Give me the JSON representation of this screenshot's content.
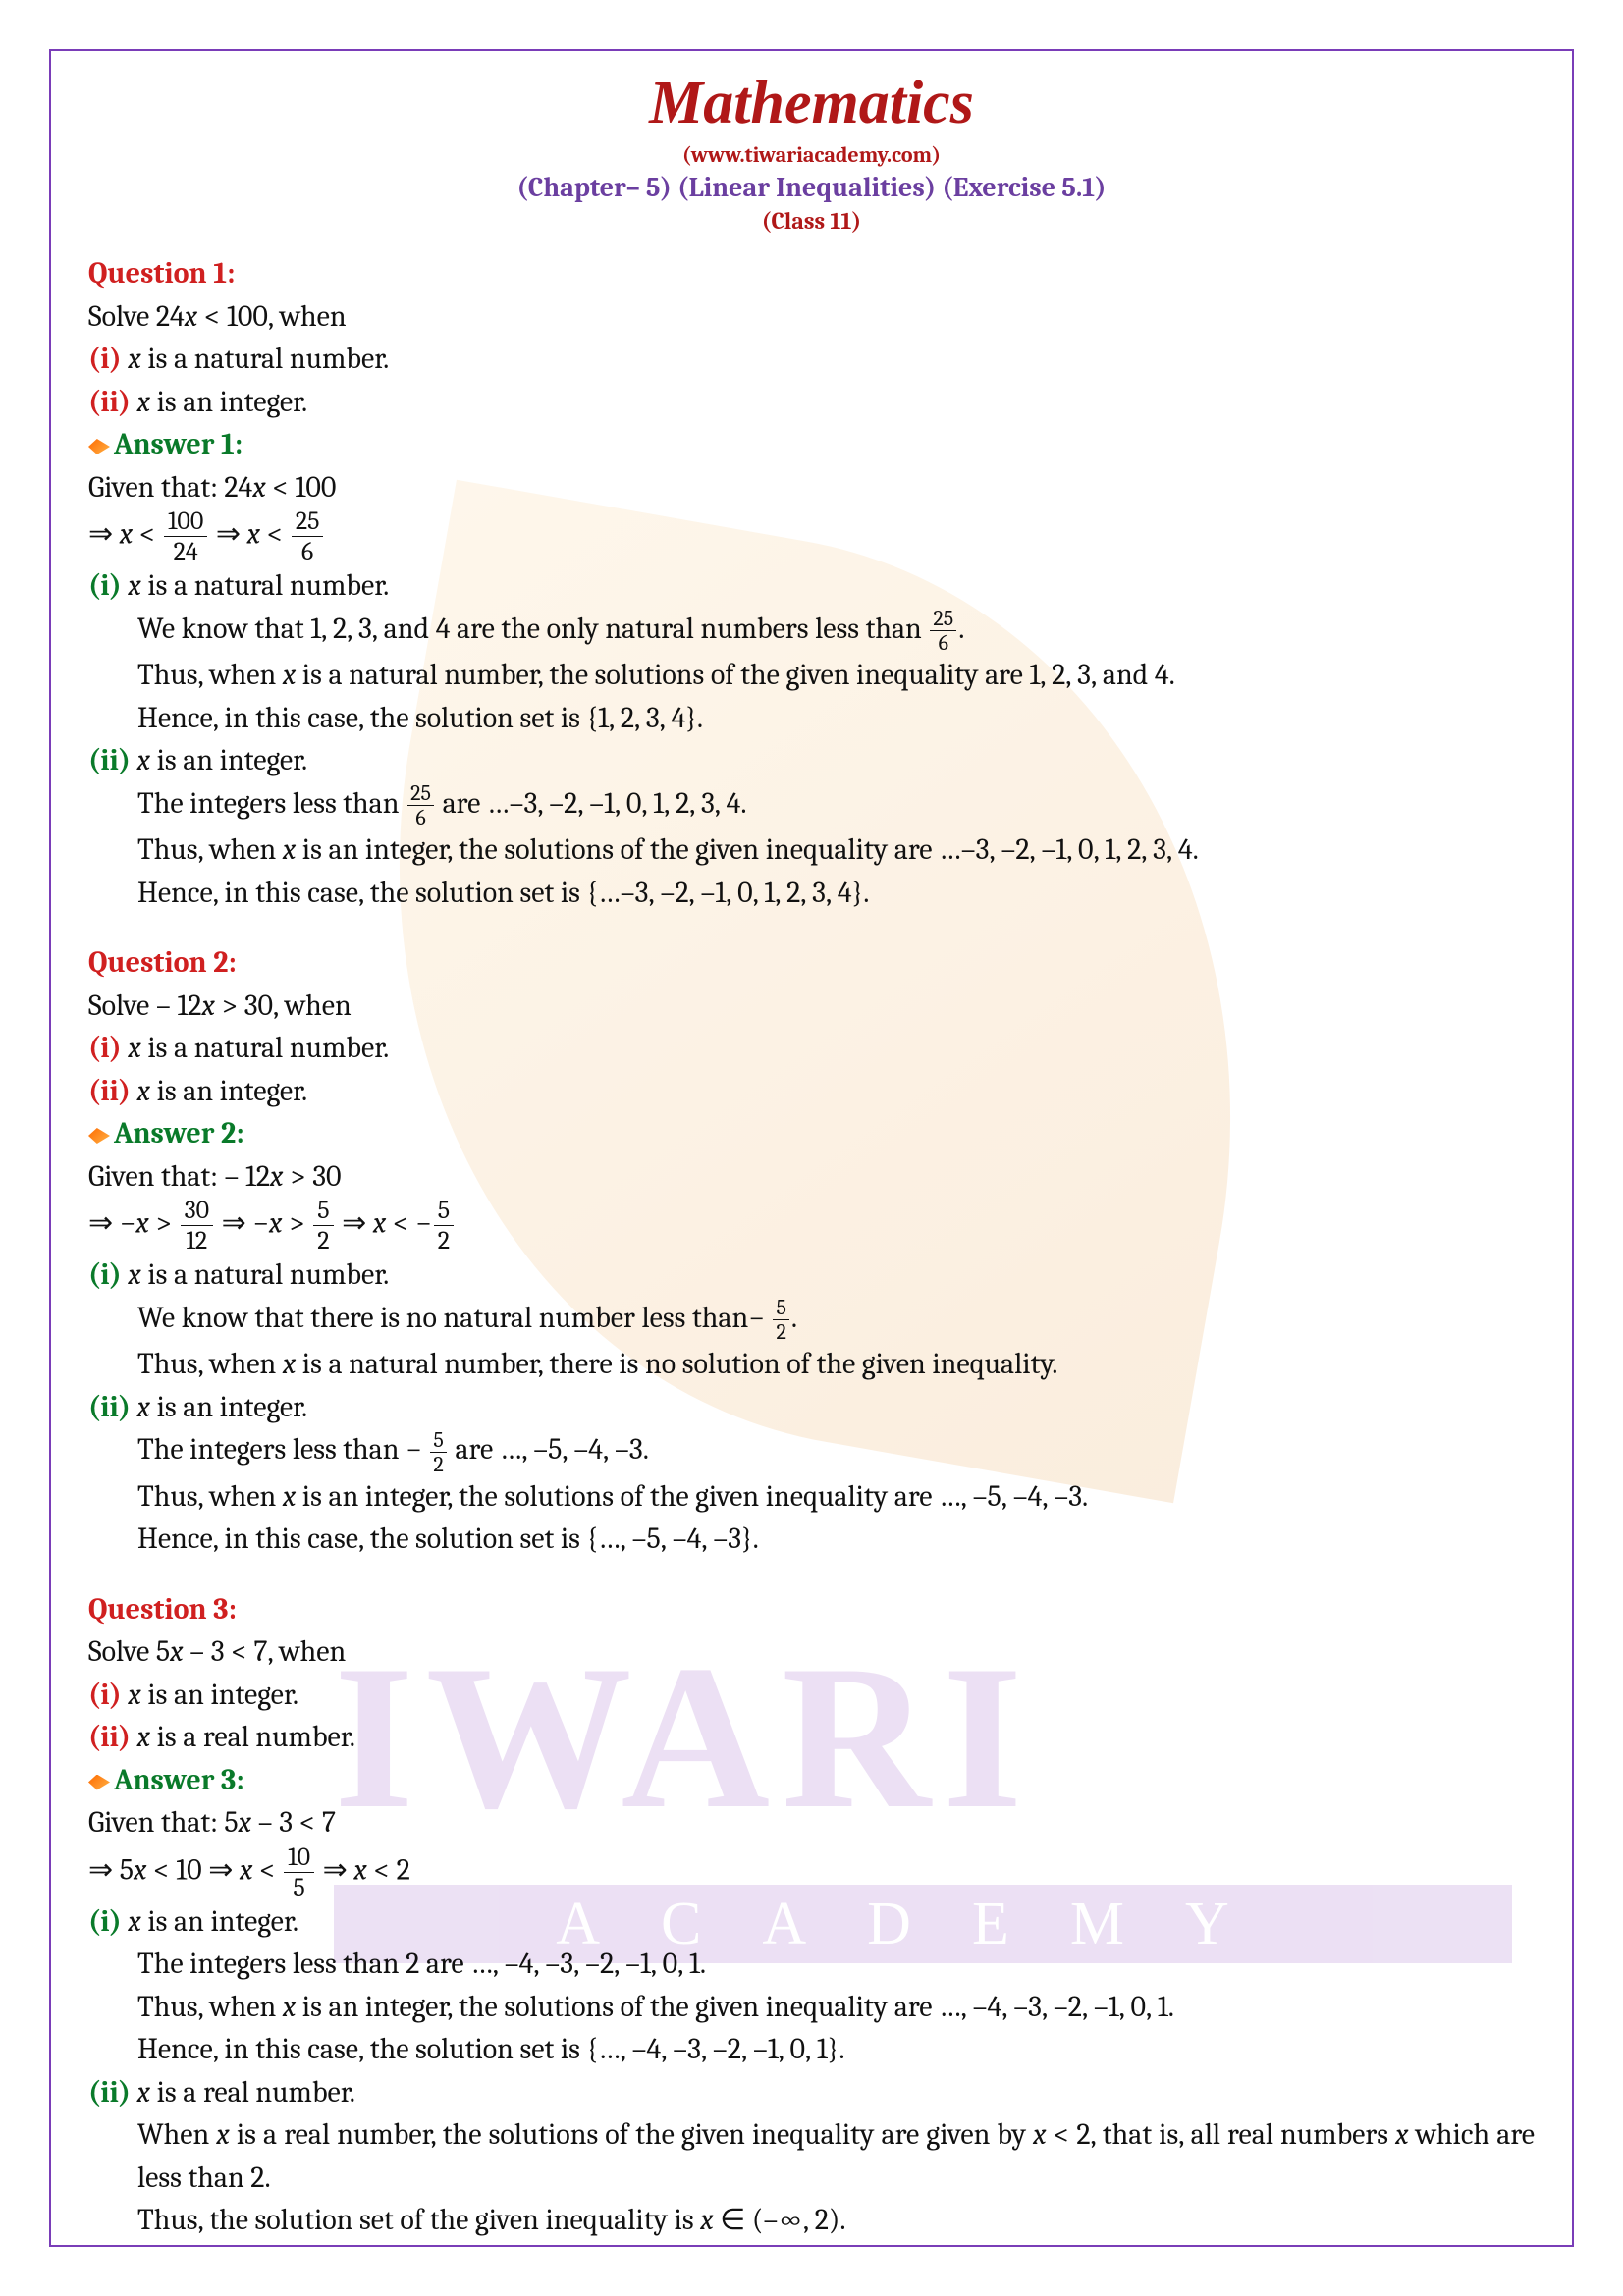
{
  "header": {
    "title": "Mathematics",
    "site": "(www.tiwariacademy.com)",
    "chapter": "(Chapter– 5) (Linear Inequalities) (Exercise 5.1)",
    "class": "(Class 11)"
  },
  "watermark": {
    "big": "IWARI",
    "bar": "ACADEMY"
  },
  "q1": {
    "label": "Question 1:",
    "prompt": "Solve 24",
    "prompt2": " < 100, when",
    "part_i_label": "(i)",
    "part_i_text": " is a natural number.",
    "part_ii_label": "(ii)",
    "part_ii_text": " is an integer.",
    "ans_label": "Answer 1:",
    "given": "Given that: 24",
    "given2": "  <  100",
    "step1a": "⇒ ",
    "lt": " < ",
    "f1n": "100",
    "f1d": "24",
    "imp": "    ⇒ ",
    "f2n": "25",
    "f2d": "6",
    "i_label": "(i)",
    "i_head": " is a natural number.",
    "i_l1a": "We know that 1, 2, 3, and 4 are the only natural numbers less than ",
    "i_l1b": ".",
    "i_l2": "Thus, when ",
    "i_l2b": " is a natural number, the solutions of the given inequality are 1, 2, 3, and 4.",
    "i_l3": "Hence, in this case, the solution set is {1, 2, 3, 4}.",
    "ii_label": "(ii)",
    "ii_head": " is an integer.",
    "ii_l1a": "The integers less than ",
    "ii_l1b": " are …–3, –2, –1, 0, 1, 2, 3, 4.",
    "ii_l2": "Thus, when ",
    "ii_l2b": " is an integer, the solutions of the given inequality are …–3, –2, –1, 0, 1, 2, 3, 4.",
    "ii_l3": "Hence, in this case, the solution set is {…–3, –2, –1, 0, 1, 2, 3, 4}."
  },
  "q2": {
    "label": "Question 2:",
    "prompt": "Solve – 12",
    "prompt2": " > 30, when",
    "part_i_label": "(i)",
    "part_i_text": " is a natural number.",
    "part_ii_label": "(ii)",
    "part_ii_text": " is an integer.",
    "ans_label": "Answer 2:",
    "given": "Given that: – 12",
    "given2": " > 30",
    "imp": "⇒ −",
    "gt": " > ",
    "f1n": "30",
    "f1d": "12",
    "imp2": "        ⇒ −",
    "f2n": "5",
    "f2d": "2",
    "imp3": "        ⇒ ",
    "lt": " < −",
    "i_label": "(i)",
    "i_head": " is a natural number.",
    "i_l1a": "We know that there is no natural number less than",
    "i_l1b": "− ",
    "i_l1c": ".",
    "i_l2": "Thus, when ",
    "i_l2b": " is a natural number, there is no solution of the given inequality.",
    "ii_label": "(ii)",
    "ii_head": " is an integer.",
    "ii_l1a": "The integers less than ",
    "ii_l1b": "− ",
    "ii_l1c": "  are …, –5, –4, –3.",
    "ii_l2": "Thus, when ",
    "ii_l2b": " is an integer, the solutions of the given inequality are …, –5, –4, –3.",
    "ii_l3": "Hence, in this case, the solution set is {…, –5, –4, –3}."
  },
  "q3": {
    "label": "Question 3:",
    "prompt": "Solve 5",
    "prompt2": " – 3 < 7, when",
    "part_i_label": "(i)",
    "part_i_text": " is an integer.",
    "part_ii_label": "(ii)",
    "part_ii_text": " is a real number.",
    "ans_label": "Answer 3:",
    "given": "Given that: 5",
    "given2": " – 3 < 7",
    "imp1": "⇒ 5",
    "step1": " < 10",
    "imp2": "        ⇒ ",
    "lt": " < ",
    "f1n": "10",
    "f1d": "5",
    "imp3": "        ⇒ ",
    "result": " < 2",
    "i_label": "(i)",
    "i_head": " is an integer.",
    "i_l1": "The integers less than 2 are …, –4, –3, –2, –1, 0, 1.",
    "i_l2": "Thus, when ",
    "i_l2b": " is an integer, the solutions of the given inequality are …, –4, –3, –2, –1, 0, 1.",
    "i_l3": "Hence, in this case, the solution set is {…, –4, –3, –2, –1, 0, 1}.",
    "ii_label": "(ii)",
    "ii_head": " is a real number.",
    "ii_l1a": "When ",
    "ii_l1b": " is a real number, the solutions of the given inequality are given by ",
    "ii_l1c": " < 2, that is, all real numbers ",
    "ii_l1d": " which are less than 2.",
    "ii_l2a": "Thus, the solution set of the given inequality is ",
    "ii_l2b": " ∈ (–∞, 2)."
  },
  "x": "x"
}
